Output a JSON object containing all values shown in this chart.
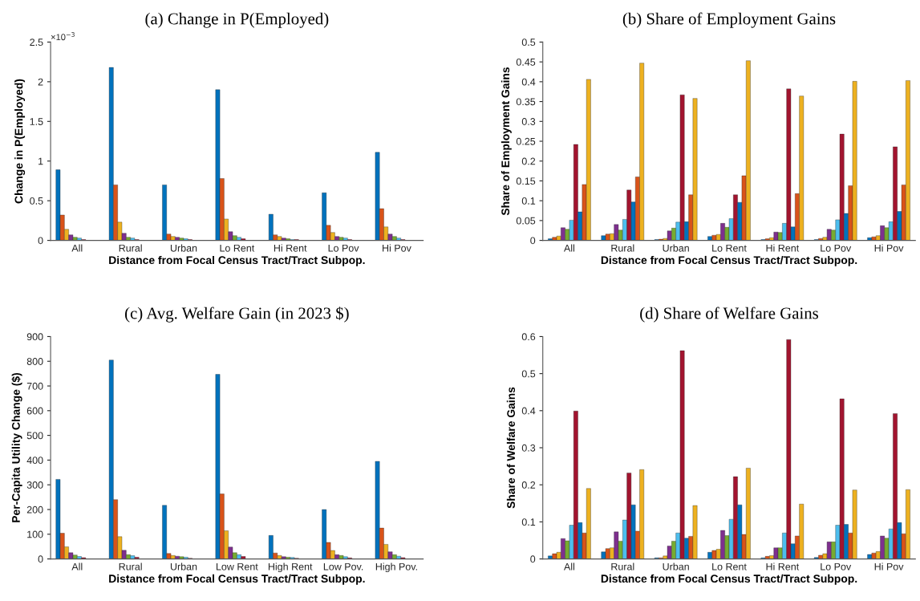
{
  "chart_data": [
    {
      "type": "bar",
      "title": "(a) Change in P(Employed)",
      "xlabel": "Distance from Focal Census Tract/Tract Subpop.",
      "ylabel": "Change in P(Employed)",
      "categories": [
        "All",
        "Rural",
        "Urban",
        "Lo Rent",
        "Hi Rent",
        "Lo Pov",
        "Hi Pov"
      ],
      "ylim": [
        0,
        2.5
      ],
      "yticks": [
        0,
        0.5,
        1,
        1.5,
        2,
        2.5
      ],
      "annotations": [
        "×10$^{−3}$"
      ],
      "grid": false,
      "legend": false,
      "series": [
        {
          "color": "#0072bd",
          "values": [
            0.89,
            2.18,
            0.7,
            1.9,
            0.33,
            0.6,
            1.11
          ]
        },
        {
          "color": "#d95319",
          "values": [
            0.32,
            0.7,
            0.08,
            0.78,
            0.07,
            0.19,
            0.4
          ]
        },
        {
          "color": "#edb120",
          "values": [
            0.14,
            0.23,
            0.05,
            0.27,
            0.05,
            0.1,
            0.17
          ]
        },
        {
          "color": "#7e2f8e",
          "values": [
            0.07,
            0.09,
            0.04,
            0.11,
            0.03,
            0.05,
            0.08
          ]
        },
        {
          "color": "#77ac30",
          "values": [
            0.04,
            0.04,
            0.03,
            0.06,
            0.02,
            0.04,
            0.05
          ]
        },
        {
          "color": "#4dbeee",
          "values": [
            0.03,
            0.03,
            0.02,
            0.04,
            0.01,
            0.03,
            0.03
          ]
        },
        {
          "color": "#a2142f",
          "values": [
            0.01,
            0.01,
            0.01,
            0.02,
            0.01,
            0.01,
            0.01
          ]
        }
      ]
    },
    {
      "type": "bar",
      "title": "(b) Share of Employment Gains",
      "xlabel": "Distance from Focal Census Tract/Tract Subpop.",
      "ylabel": "Share of Employment Gains",
      "categories": [
        "All",
        "Rural",
        "Urban",
        "Lo Rent",
        "Hi Rent",
        "Lo Pov",
        "Hi Pov"
      ],
      "ylim": [
        0,
        0.5
      ],
      "yticks": [
        0,
        0.05,
        0.1,
        0.15,
        0.2,
        0.25,
        0.3,
        0.35,
        0.4,
        0.45,
        0.5
      ],
      "grid": false,
      "legend": false,
      "series": [
        {
          "color": "#0072bd",
          "values": [
            0.004,
            0.012,
            0.002,
            0.01,
            0.002,
            0.002,
            0.007
          ]
        },
        {
          "color": "#d95319",
          "values": [
            0.008,
            0.016,
            0.003,
            0.013,
            0.004,
            0.005,
            0.009
          ]
        },
        {
          "color": "#edb120",
          "values": [
            0.011,
            0.017,
            0.005,
            0.015,
            0.007,
            0.008,
            0.012
          ]
        },
        {
          "color": "#7e2f8e",
          "values": [
            0.032,
            0.04,
            0.024,
            0.043,
            0.021,
            0.028,
            0.037
          ]
        },
        {
          "color": "#77ac30",
          "values": [
            0.028,
            0.026,
            0.031,
            0.033,
            0.02,
            0.026,
            0.032
          ]
        },
        {
          "color": "#4dbeee",
          "values": [
            0.051,
            0.053,
            0.046,
            0.055,
            0.043,
            0.052,
            0.047
          ]
        },
        {
          "color": "#a2142f",
          "values": [
            0.242,
            0.127,
            0.367,
            0.115,
            0.382,
            0.268,
            0.236
          ]
        },
        {
          "color": "#0072bd",
          "values": [
            0.072,
            0.097,
            0.047,
            0.096,
            0.034,
            0.068,
            0.073
          ]
        },
        {
          "color": "#d95319",
          "values": [
            0.141,
            0.16,
            0.115,
            0.163,
            0.118,
            0.138,
            0.14
          ]
        },
        {
          "color": "#edb120",
          "values": [
            0.406,
            0.447,
            0.358,
            0.453,
            0.364,
            0.401,
            0.403
          ]
        }
      ]
    },
    {
      "type": "bar",
      "title": "(c) Avg. Welfare Gain (in 2023 $)",
      "xlabel": "Distance from Focal Census Tract/Tract Subpop.",
      "ylabel": "Per-Capita Utility Change ($)",
      "categories": [
        "All",
        "Rural",
        "Urban",
        "Low Rent",
        "High Rent",
        "Low Pov.",
        "High Pov."
      ],
      "ylim": [
        0,
        900
      ],
      "yticks": [
        0,
        100,
        200,
        300,
        400,
        500,
        600,
        700,
        800,
        900
      ],
      "grid": false,
      "legend": false,
      "series": [
        {
          "color": "#0072bd",
          "values": [
            322,
            805,
            217,
            747,
            95,
            200,
            395
          ]
        },
        {
          "color": "#d95319",
          "values": [
            104,
            240,
            22,
            263,
            24,
            67,
            125
          ]
        },
        {
          "color": "#edb120",
          "values": [
            49,
            90,
            14,
            114,
            14,
            34,
            59
          ]
        },
        {
          "color": "#7e2f8e",
          "values": [
            25,
            35,
            11,
            48,
            9,
            17,
            29
          ]
        },
        {
          "color": "#77ac30",
          "values": [
            16,
            17,
            9,
            25,
            7,
            14,
            17
          ]
        },
        {
          "color": "#4dbeee",
          "values": [
            10,
            13,
            7,
            17,
            6,
            9,
            11
          ]
        },
        {
          "color": "#a2142f",
          "values": [
            5,
            7,
            3,
            10,
            3,
            4,
            5
          ]
        }
      ]
    },
    {
      "type": "bar",
      "title": "(d) Share of Welfare Gains",
      "xlabel": "Distance from Focal Census Tract/Tract Subpop.",
      "ylabel": "Share of Welfare Gains",
      "categories": [
        "All",
        "Rural",
        "Urban",
        "Lo Rent",
        "Hi Rent",
        "Lo Pov",
        "Hi Pov"
      ],
      "ylim": [
        0,
        0.6
      ],
      "yticks": [
        0,
        0.1,
        0.2,
        0.3,
        0.4,
        0.5,
        0.6
      ],
      "grid": false,
      "legend": false,
      "series": [
        {
          "color": "#0072bd",
          "values": [
            0.008,
            0.019,
            0.003,
            0.018,
            0.003,
            0.004,
            0.012
          ]
        },
        {
          "color": "#d95319",
          "values": [
            0.014,
            0.028,
            0.003,
            0.023,
            0.007,
            0.01,
            0.016
          ]
        },
        {
          "color": "#edb120",
          "values": [
            0.018,
            0.03,
            0.008,
            0.026,
            0.009,
            0.014,
            0.02
          ]
        },
        {
          "color": "#7e2f8e",
          "values": [
            0.055,
            0.073,
            0.035,
            0.077,
            0.03,
            0.046,
            0.062
          ]
        },
        {
          "color": "#77ac30",
          "values": [
            0.049,
            0.048,
            0.048,
            0.063,
            0.03,
            0.046,
            0.056
          ]
        },
        {
          "color": "#4dbeee",
          "values": [
            0.091,
            0.105,
            0.07,
            0.107,
            0.07,
            0.091,
            0.081
          ]
        },
        {
          "color": "#a2142f",
          "values": [
            0.399,
            0.232,
            0.562,
            0.222,
            0.592,
            0.432,
            0.392
          ]
        },
        {
          "color": "#0072bd",
          "values": [
            0.098,
            0.146,
            0.056,
            0.146,
            0.041,
            0.093,
            0.098
          ]
        },
        {
          "color": "#d95319",
          "values": [
            0.07,
            0.075,
            0.061,
            0.066,
            0.062,
            0.07,
            0.068
          ]
        },
        {
          "color": "#edb120",
          "values": [
            0.19,
            0.241,
            0.144,
            0.245,
            0.148,
            0.186,
            0.187
          ]
        }
      ]
    }
  ]
}
